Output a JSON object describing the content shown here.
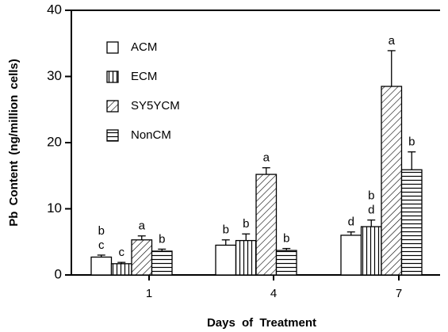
{
  "chart_data": {
    "type": "bar",
    "xlabel": "Days of Treatment",
    "ylabel": "Pb Content (ng/million cells)",
    "categories": [
      "1",
      "4",
      "7"
    ],
    "series": [
      {
        "name": "ACM",
        "pattern": "none",
        "values": [
          2.7,
          4.5,
          6.0
        ],
        "errors": [
          0.3,
          0.8,
          0.5
        ],
        "letters": [
          [
            "b",
            "c"
          ],
          [
            "b"
          ],
          [
            "d"
          ]
        ]
      },
      {
        "name": "ECM",
        "pattern": "vertical",
        "values": [
          1.7,
          5.2,
          7.3
        ],
        "errors": [
          0.2,
          1.0,
          1.0
        ],
        "letters": [
          [
            "c"
          ],
          [
            "b"
          ],
          [
            "b",
            "d"
          ]
        ]
      },
      {
        "name": "SY5YCM",
        "pattern": "diagonal",
        "values": [
          5.3,
          15.2,
          28.5
        ],
        "errors": [
          0.6,
          1.0,
          5.4
        ],
        "letters": [
          [
            "a"
          ],
          [
            "a"
          ],
          [
            "a"
          ]
        ]
      },
      {
        "name": "NonCM",
        "pattern": "horizontal",
        "values": [
          3.6,
          3.7,
          15.9
        ],
        "errors": [
          0.3,
          0.3,
          2.7
        ],
        "letters": [
          [
            "b"
          ],
          [
            "b"
          ],
          [
            "b"
          ]
        ]
      }
    ],
    "ylim": [
      0,
      40
    ],
    "yticks": [
      0,
      10,
      20,
      30,
      40
    ],
    "legend": "upper left"
  }
}
